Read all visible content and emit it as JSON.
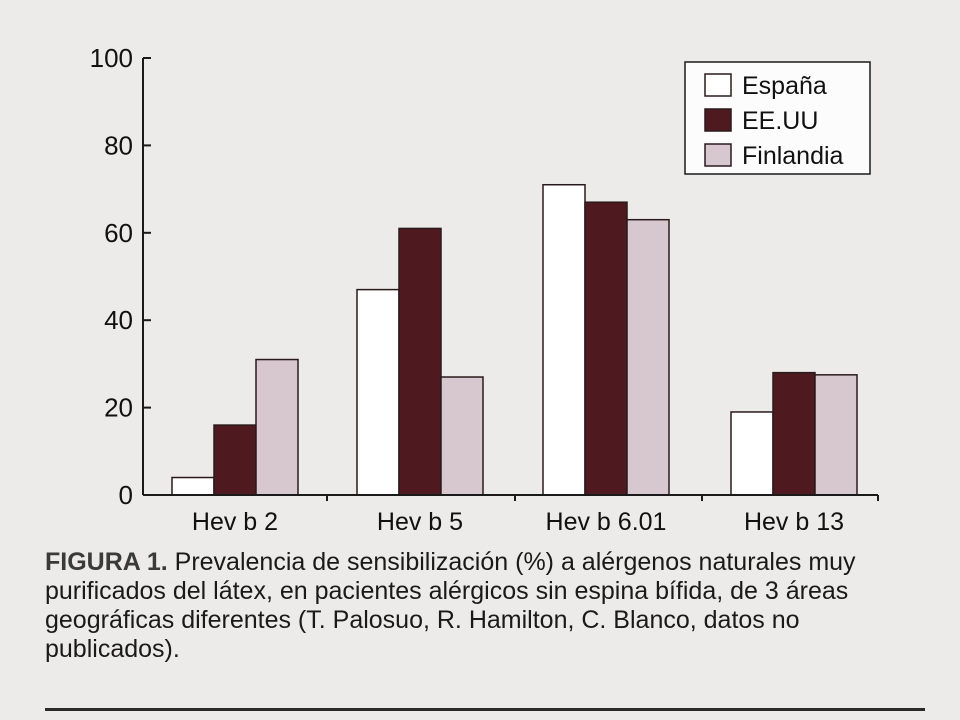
{
  "chart_data": {
    "type": "bar",
    "categories": [
      "Hev b 2",
      "Hev b 5",
      "Hev b 6.01",
      "Hev b 13"
    ],
    "series": [
      {
        "name": "España",
        "values": [
          4,
          47,
          71,
          19
        ]
      },
      {
        "name": "EE.UU",
        "values": [
          16,
          61,
          67,
          28
        ]
      },
      {
        "name": "Finlandia",
        "values": [
          31,
          27,
          63,
          27.5
        ]
      }
    ],
    "yticks": [
      "0",
      "20",
      "40",
      "60",
      "80",
      "100"
    ],
    "ylim": [
      0,
      100
    ],
    "grid": false,
    "legend_position": "top-right",
    "colors": {
      "España": "#ffffff",
      "EE.UU": "#4e1a20",
      "Finlandia": "#d7c7cf",
      "bar_stroke": "#2a1a1c",
      "axis": "#1a1a1a"
    }
  },
  "caption": {
    "label": "FIGURA 1.",
    "text": " Prevalencia de sensibilización (%) a alérgenos naturales muy purificados del látex, en pacientes alérgicos sin espina bífida, de 3 áreas geográficas diferentes (T. Palosuo, R. Hamilton, C. Blanco, datos no publicados)."
  }
}
